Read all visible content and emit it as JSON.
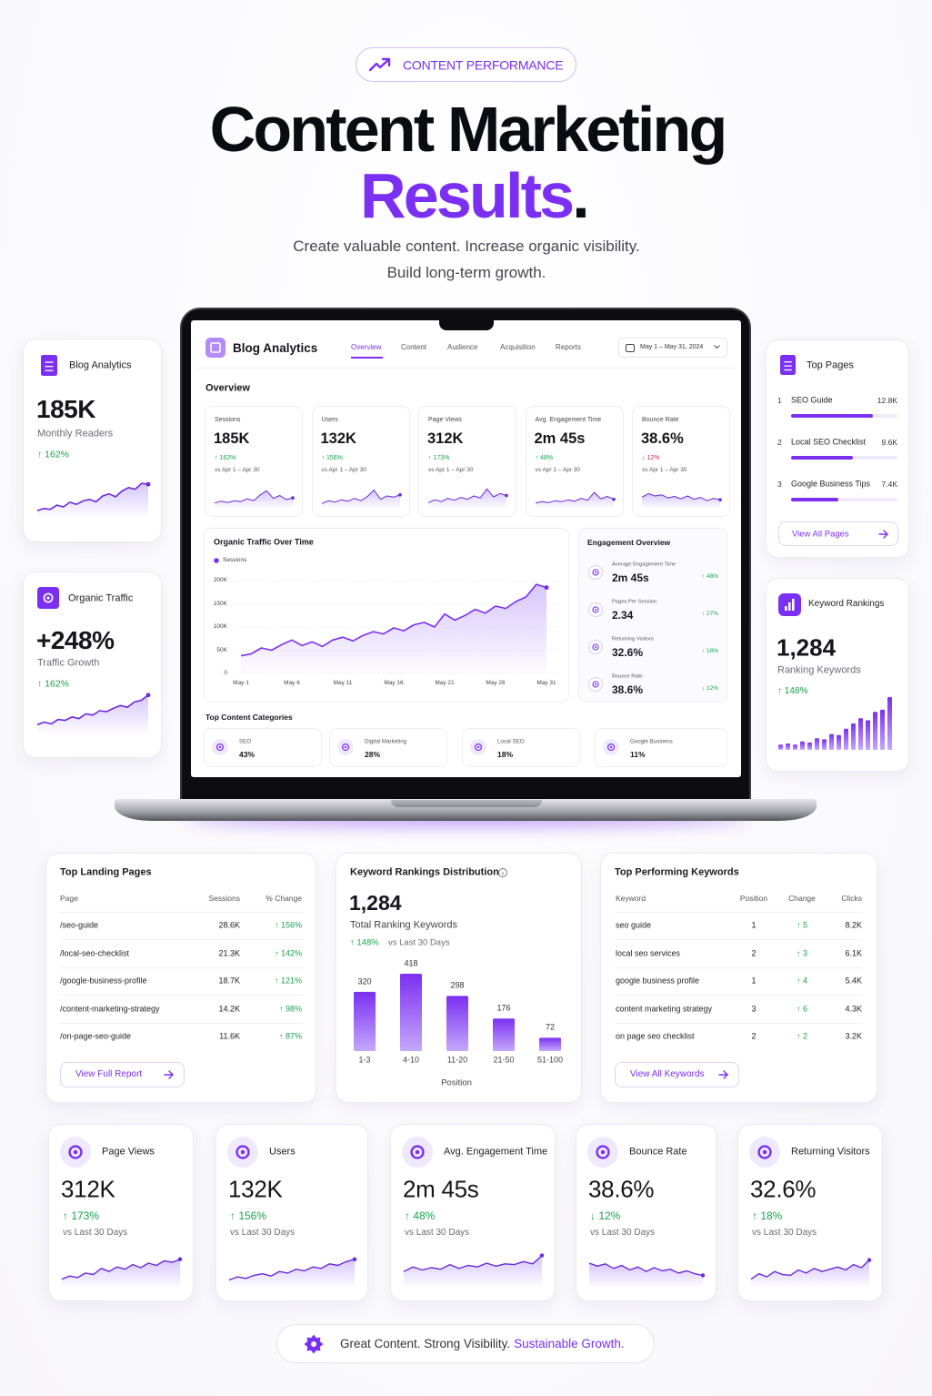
{
  "header": {
    "badge": "CONTENT PERFORMANCE",
    "title_line1": "Content Marketing",
    "title_line2": "Results",
    "title_dot": ".",
    "subtitle_line1": "Create valuable content. Increase organic visibility.",
    "subtitle_line2": "Build long-term growth."
  },
  "dashboard": {
    "app_title": "Blog Analytics",
    "nav": [
      "Overview",
      "Content",
      "Audience",
      "Acquisition",
      "Reports"
    ],
    "date_range": "May 1 – May 31, 2024",
    "section": "Overview",
    "kpis": [
      {
        "label": "Sessions",
        "value": "185K",
        "change": "↑ 162%",
        "change_color": "#16a34a",
        "comparison": "vs Apr 1 – Apr 30",
        "spark": [
          20,
          28,
          22,
          30,
          26,
          38,
          30,
          55,
          72,
          40,
          52,
          35,
          42
        ]
      },
      {
        "label": "Users",
        "value": "132K",
        "change": "↑ 156%",
        "change_color": "#16a34a",
        "comparison": "vs Apr 1 – Apr 30",
        "spark": [
          18,
          30,
          24,
          34,
          28,
          40,
          30,
          48,
          75,
          36,
          50,
          45,
          55
        ]
      },
      {
        "label": "Page Views",
        "value": "312K",
        "change": "↑ 173%",
        "change_color": "#16a34a",
        "comparison": "vs Apr 1 – Apr 30",
        "spark": [
          22,
          34,
          26,
          40,
          32,
          44,
          36,
          50,
          42,
          80,
          46,
          60,
          52
        ]
      },
      {
        "label": "Avg. Engagement Time",
        "value": "2m 45s",
        "change": "↑ 48%",
        "change_color": "#16a34a",
        "comparison": "vs Apr 1 – Apr 30",
        "spark": [
          20,
          26,
          22,
          30,
          26,
          34,
          28,
          40,
          32,
          65,
          38,
          48,
          36
        ]
      },
      {
        "label": "Bounce Rate",
        "value": "38.6%",
        "change": "↓ 12%",
        "change_color": "#e11d48",
        "comparison": "vs Apr 1 – Apr 30",
        "spark": [
          45,
          60,
          50,
          55,
          42,
          48,
          38,
          50,
          36,
          44,
          30,
          40,
          34
        ]
      }
    ],
    "traffic_chart": {
      "type": "line",
      "title": "Organic Traffic Over Time",
      "categories": [
        "May 1",
        null,
        null,
        null,
        null,
        "May 6",
        null,
        null,
        null,
        null,
        "May 11",
        null,
        null,
        null,
        null,
        "May 16",
        null,
        null,
        null,
        null,
        "May 21",
        null,
        null,
        null,
        null,
        "May 26",
        null,
        null,
        null,
        null,
        "May 31"
      ],
      "series": [
        {
          "name": "Sessions",
          "color": "#7b2ff2",
          "values": [
            38000,
            42000,
            55000,
            50000,
            62000,
            72000,
            60000,
            68000,
            58000,
            72000,
            78000,
            70000,
            82000,
            90000,
            85000,
            98000,
            92000,
            105000,
            110000,
            100000,
            128000,
            115000,
            125000,
            138000,
            130000,
            145000,
            140000,
            155000,
            165000,
            192000,
            185000
          ]
        }
      ],
      "ylim": [
        0,
        200000
      ],
      "yticks": [
        0,
        {
          "value": 50000,
          "label": "50K"
        },
        {
          "value": 100000,
          "label": "100K"
        },
        {
          "value": 150000,
          "label": "150K"
        },
        {
          "value": 200000,
          "label": "200K"
        }
      ],
      "grid": true
    },
    "engagement": {
      "title": "Engagement Overview",
      "items": [
        {
          "label": "Average Engagement Time",
          "value": "2m 45s",
          "change": "↑ 48%",
          "change_color": "#16a34a"
        },
        {
          "label": "Pages Per Session",
          "value": "2.34",
          "change": "↑ 27%",
          "change_color": "#16a34a"
        },
        {
          "label": "Returning Visitors",
          "value": "32.6%",
          "change": "↑ 18%",
          "change_color": "#16a34a"
        },
        {
          "label": "Bounce Rate",
          "value": "38.6%",
          "change": "↓ 12%",
          "change_color": "#16a34a"
        }
      ]
    },
    "top_categories": {
      "title": "Top Content Categories",
      "items": [
        {
          "name": "SEO",
          "value": "43%"
        },
        {
          "name": "Digital Marketing",
          "value": "28%"
        },
        {
          "name": "Local SEO",
          "value": "18%"
        },
        {
          "name": "Google Business",
          "value": "11%"
        }
      ]
    }
  },
  "side_cards": [
    {
      "title": "Blog Analytics",
      "value": "185K",
      "label": "Monthly Readers",
      "change": "↑ 162%",
      "change_color": "#16a34a",
      "spark": [
        15,
        20,
        18,
        28,
        24,
        35,
        30,
        38,
        42,
        36,
        50,
        55,
        48,
        62,
        70,
        66,
        80,
        78
      ]
    },
    {
      "title": "Organic Traffic",
      "value": "+248%",
      "label": "Traffic Growth",
      "change": "↑ 162%",
      "change_color": "#16a34a",
      "spark": [
        20,
        26,
        22,
        32,
        30,
        38,
        34,
        45,
        42,
        52,
        50,
        58,
        64,
        60,
        72,
        76,
        88
      ]
    }
  ],
  "top_pages": {
    "title": "Top Pages",
    "items": [
      {
        "rank": 1,
        "name": "SEO Guide",
        "value": 12800,
        "value_label": "12.8K"
      },
      {
        "rank": 2,
        "name": "Local SEO Checklist",
        "value": 9600,
        "value_label": "9.6K"
      },
      {
        "rank": 3,
        "name": "Google Business Tips",
        "value": 7400,
        "value_label": "7.4K"
      }
    ],
    "link": "View All Pages"
  },
  "keyword_rankings": {
    "title": "Keyword Rankings",
    "value": "1,284",
    "label": "Ranking Keywords",
    "change": "↑ 148%",
    "change_color": "#16a34a",
    "bars": [
      10,
      12,
      10,
      16,
      14,
      22,
      20,
      30,
      28,
      40,
      50,
      60,
      56,
      72,
      76,
      100
    ]
  },
  "landing_pages": {
    "title": "Top Landing Pages",
    "columns": [
      "Page",
      "Sessions",
      "% Change"
    ],
    "rows": [
      [
        "/seo-guide",
        "28.6K",
        "↑ 156%"
      ],
      [
        "/local-seo-checklist",
        "21.3K",
        "↑ 142%"
      ],
      [
        "/google-business-profile",
        "18.7K",
        "↑ 121%"
      ],
      [
        "/content-marketing-strategy",
        "14.2K",
        "↑ 98%"
      ],
      [
        "/on-page-seo-guide",
        "11.6K",
        "↑ 87%"
      ]
    ],
    "button": "View Full Report"
  },
  "keyword_distribution": {
    "type": "bar",
    "title": "Keyword Rankings Distribution",
    "total": "1,284",
    "total_label": "Total Ranking Keywords",
    "change": "↑ 148%",
    "comparison": "vs Last 30 Days",
    "categories": [
      "1-3",
      "4-10",
      "11-20",
      "21-50",
      "51-100"
    ],
    "values": [
      320,
      418,
      298,
      176,
      72
    ],
    "x_label": "Position",
    "color": "#7b2ff2"
  },
  "top_keywords": {
    "title": "Top Performing Keywords",
    "columns": [
      "Keyword",
      "Position",
      "Change",
      "Clicks"
    ],
    "rows": [
      [
        "seo guide",
        1,
        "↑ 5",
        "8.2K"
      ],
      [
        "local seo services",
        2,
        "↑ 3",
        "6.1K"
      ],
      [
        "google business profile",
        1,
        "↑ 4",
        "5.4K"
      ],
      [
        "content marketing strategy",
        3,
        "↑ 6",
        "4.3K"
      ],
      [
        "on page seo checklist",
        2,
        "↑ 2",
        "3.2K"
      ]
    ],
    "button": "View All Keywords"
  },
  "metrics": [
    {
      "title": "Page Views",
      "value": "312K",
      "change": "↑ 173%",
      "change_color": "#16a34a",
      "comparison": "vs Last 30 Days",
      "spark": [
        20,
        28,
        24,
        36,
        32,
        48,
        40,
        52,
        46,
        58,
        50,
        62,
        56,
        68,
        64,
        72
      ]
    },
    {
      "title": "Users",
      "value": "132K",
      "change": "↑ 156%",
      "change_color": "#16a34a",
      "comparison": "vs Last 30 Days",
      "spark": [
        18,
        26,
        22,
        30,
        34,
        28,
        40,
        36,
        46,
        42,
        52,
        48,
        60,
        56,
        66,
        72
      ]
    },
    {
      "title": "Avg. Engagement Time",
      "value": "2m 45s",
      "change": "↑ 48%",
      "change_color": "#16a34a",
      "comparison": "vs Last 30 Days",
      "spark": [
        40,
        52,
        44,
        50,
        46,
        58,
        48,
        56,
        52,
        62,
        54,
        60,
        58,
        66,
        60,
        82
      ]
    },
    {
      "title": "Bounce Rate",
      "value": "38.6%",
      "change": "↓ 12%",
      "change_color": "#16a34a",
      "comparison": "vs Last 30 Days",
      "spark": [
        62,
        54,
        60,
        48,
        56,
        44,
        52,
        40,
        50,
        42,
        46,
        36,
        42,
        34,
        30
      ]
    },
    {
      "title": "Returning Visitors",
      "value": "32.6%",
      "change": "↑ 18%",
      "change_color": "#16a34a",
      "comparison": "vs Last 30 Days",
      "spark": [
        20,
        34,
        26,
        40,
        32,
        30,
        44,
        36,
        48,
        40,
        46,
        52,
        44,
        58,
        50,
        70
      ]
    }
  ],
  "footer": {
    "tagline": "Great Content. Strong Visibility.",
    "tagline_highlight": "Sustainable Growth."
  }
}
